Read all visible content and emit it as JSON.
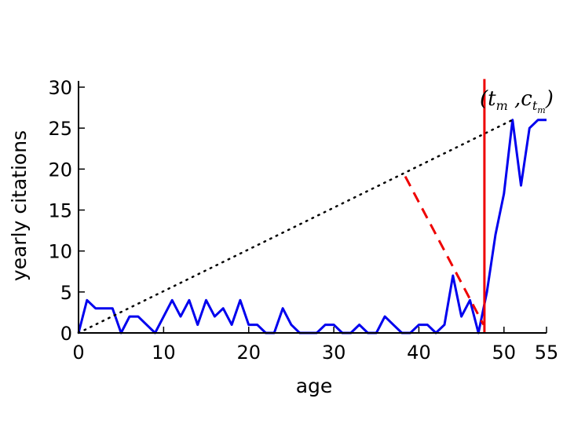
{
  "chart_data": {
    "type": "line",
    "xlabel": "age",
    "ylabel": "yearly citations",
    "xlim": [
      0,
      55
    ],
    "ylim": [
      0,
      30
    ],
    "xticks": [
      0,
      10,
      20,
      30,
      40,
      50,
      55
    ],
    "yticks": [
      0,
      5,
      10,
      15,
      20,
      25,
      30
    ],
    "grid": false,
    "series": [
      {
        "color": "#0000ee",
        "style": "solid",
        "x": [
          0,
          1,
          2,
          3,
          4,
          5,
          6,
          7,
          8,
          9,
          10,
          11,
          12,
          13,
          14,
          15,
          16,
          17,
          18,
          19,
          20,
          21,
          22,
          23,
          24,
          25,
          26,
          27,
          28,
          29,
          30,
          31,
          32,
          33,
          34,
          35,
          36,
          37,
          38,
          39,
          40,
          41,
          42,
          43,
          44,
          45,
          46,
          47,
          48,
          49,
          50,
          51,
          52,
          53,
          54,
          55
        ],
        "y": [
          0,
          4,
          3,
          3,
          3,
          0,
          2,
          2,
          1,
          0,
          2,
          4,
          2,
          4,
          1,
          4,
          2,
          3,
          1,
          4,
          1,
          1,
          0,
          0,
          3,
          1,
          0,
          0,
          0,
          1,
          1,
          0,
          0,
          1,
          0,
          0,
          2,
          1,
          0,
          0,
          1,
          1,
          0,
          1,
          7,
          2,
          4,
          0,
          5,
          12,
          17,
          26,
          18,
          25,
          26,
          26
        ]
      },
      {
        "color": "#000000",
        "style": "dotted",
        "x": [
          0,
          51
        ],
        "y": [
          0,
          26
        ]
      },
      {
        "color": "#ee0000",
        "style": "dashed",
        "x": [
          38.4,
          47.6
        ],
        "y": [
          19.1,
          1.0
        ]
      },
      {
        "color": "#ee0000",
        "style": "solid",
        "x": [
          47.7,
          47.7
        ],
        "y": [
          0,
          31
        ]
      }
    ],
    "annotation": {
      "base": "(t",
      "t_sub": "m",
      "middle": " ,c",
      "c_sub": "t",
      "c_subsub": "m",
      "close": ")",
      "x": 51,
      "y": 26
    }
  }
}
